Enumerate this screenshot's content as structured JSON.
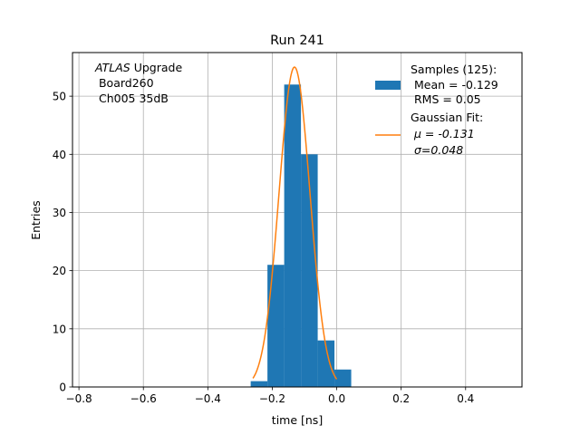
{
  "chart_data": {
    "type": "bar",
    "title": "Run 241",
    "xlabel": "time [ns]",
    "ylabel": "Entries",
    "xlim": [
      -0.82,
      0.575
    ],
    "ylim": [
      0,
      57.5
    ],
    "grid": true,
    "xticks": [
      -0.8,
      -0.6,
      -0.4,
      -0.2,
      0.0,
      0.2,
      0.4
    ],
    "xtick_labels": [
      "−0.8",
      "−0.6",
      "−0.4",
      "−0.2",
      "0.0",
      "0.2",
      "0.4"
    ],
    "yticks": [
      0,
      10,
      20,
      30,
      40,
      50
    ],
    "ytick_labels": [
      "0",
      "10",
      "20",
      "30",
      "40",
      "50"
    ],
    "annotation": {
      "experiment": "ATLAS",
      "upgrade": " Upgrade",
      "lines": [
        " Board260",
        " Ch005 35dB"
      ]
    },
    "legend": {
      "position": "top-right",
      "hist_lines": [
        "Samples (125):",
        " Mean = -0.129",
        " RMS = 0.05"
      ],
      "fit_lines": [
        "Gaussian Fit:",
        "μ = -0.131",
        "σ=0.048"
      ]
    },
    "series": [
      {
        "kind": "histogram",
        "color": "#1f77b4",
        "bin_edges": [
          -0.267,
          -0.215,
          -0.163,
          -0.111,
          -0.059,
          -0.007,
          0.045
        ],
        "values": [
          1,
          21,
          52,
          40,
          8,
          3
        ]
      },
      {
        "kind": "line",
        "color": "#ff7f0e",
        "mu": -0.131,
        "sigma": 0.048,
        "amplitude": 55,
        "x_range": [
          -0.26,
          0.0
        ]
      }
    ]
  }
}
